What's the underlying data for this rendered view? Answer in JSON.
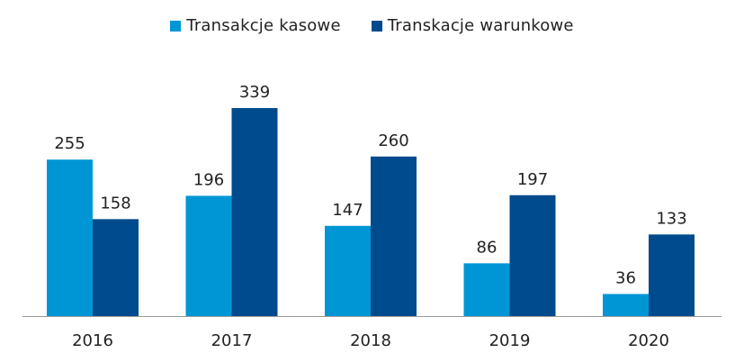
{
  "chart_data": {
    "type": "bar",
    "categories": [
      "2016",
      "2017",
      "2018",
      "2019",
      "2020"
    ],
    "series": [
      {
        "name": "Transakcje kasowe",
        "values": [
          255,
          196,
          147,
          86,
          36
        ],
        "color": "#0096d6"
      },
      {
        "name": "Transkacje warunkowe",
        "values": [
          158,
          339,
          260,
          197,
          133
        ],
        "color": "#004b8d"
      }
    ],
    "ylim": [
      0,
      339
    ],
    "grid": false,
    "legend_position": "top-center",
    "axis_color": "#999999"
  }
}
